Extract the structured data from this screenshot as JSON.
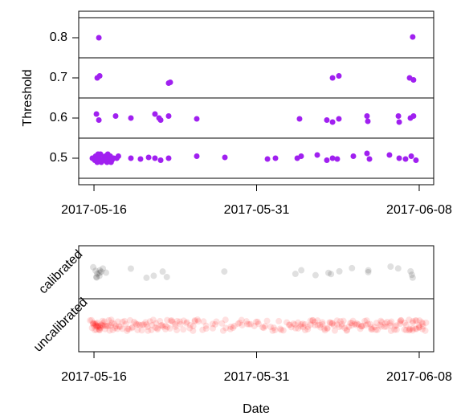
{
  "chart_data": [
    {
      "type": "scatter",
      "ylabel": "Threshold",
      "xlim": [
        -0.94,
        20.89
      ],
      "ylim": [
        0.434,
        0.866
      ],
      "xticks": [
        {
          "value": 0,
          "label": "2017-05-16"
        },
        {
          "value": 10,
          "label": "2017-05-31"
        },
        {
          "value": 20,
          "label": "2017-06-08"
        }
      ],
      "yticks": [
        0.5,
        0.6,
        0.7,
        0.8
      ],
      "hlines": [
        0.45,
        0.55,
        0.65,
        0.75,
        0.85
      ],
      "series": [
        {
          "color": "#a020f0",
          "x": [
            0.3,
            19.6,
            0.2,
            0.35,
            4.59,
            4.69,
            14.67,
            15.06,
            19.41,
            19.65,
            0.15,
            0.3,
            1.33,
            2.27,
            3.75,
            4.0,
            4.1,
            4.59,
            6.32,
            12.64,
            14.32,
            14.67,
            15.06,
            16.79,
            16.84,
            18.72,
            18.77,
            19.46,
            19.65,
            -0.1,
            0.05,
            0.1,
            0.2,
            0.3,
            0.4,
            0.5,
            0.6,
            0.7,
            0.8,
            0.9,
            1.0,
            1.1,
            1.2,
            1.4,
            1.5,
            0.25,
            0.45,
            0.65,
            0.85,
            1.05,
            2.27,
            2.86,
            3.36,
            3.75,
            4.1,
            4.59,
            6.32,
            8.05,
            10.67,
            11.16,
            12.5,
            12.74,
            13.73,
            14.32,
            14.67,
            14.96,
            15.95,
            16.79,
            16.94,
            18.17,
            18.77,
            19.16,
            19.51,
            19.8
          ],
          "y": [
            0.8,
            0.802,
            0.7,
            0.705,
            0.687,
            0.689,
            0.7,
            0.705,
            0.7,
            0.695,
            0.61,
            0.595,
            0.605,
            0.6,
            0.61,
            0.6,
            0.595,
            0.605,
            0.598,
            0.598,
            0.595,
            0.59,
            0.598,
            0.605,
            0.592,
            0.605,
            0.59,
            0.6,
            0.605,
            0.5,
            0.495,
            0.505,
            0.49,
            0.5,
            0.51,
            0.495,
            0.5,
            0.505,
            0.49,
            0.5,
            0.505,
            0.495,
            0.5,
            0.5,
            0.505,
            0.51,
            0.49,
            0.495,
            0.51,
            0.49,
            0.5,
            0.498,
            0.502,
            0.5,
            0.495,
            0.5,
            0.505,
            0.502,
            0.498,
            0.5,
            0.5,
            0.505,
            0.508,
            0.495,
            0.5,
            0.498,
            0.505,
            0.512,
            0.498,
            0.508,
            0.5,
            0.498,
            0.505,
            0.495
          ]
        }
      ]
    },
    {
      "type": "strip",
      "xlabel": "Date",
      "xlim": [
        -0.94,
        20.89
      ],
      "xticks": [
        {
          "value": 0,
          "label": "2017-05-16"
        },
        {
          "value": 10,
          "label": "2017-05-31"
        },
        {
          "value": 20,
          "label": "2017-06-08"
        }
      ],
      "categories": [
        "calibrated",
        "uncalibrated"
      ],
      "groups": [
        {
          "color": "#000000",
          "opacity": 0.12,
          "x": [
            0.0,
            0.1,
            0.2,
            0.25,
            0.3,
            0.35,
            0.4,
            0.5,
            0.6,
            0.3,
            0.2,
            2.4,
            3.1,
            3.8,
            4.1,
            4.6,
            7.9,
            12.5,
            12.64,
            13.73,
            14.32,
            14.67,
            15.0,
            15.95,
            16.79,
            16.94,
            18.17,
            18.77,
            19.41,
            19.65,
            19.5
          ]
        },
        {
          "color": "#ff0000",
          "opacity": 0.12,
          "x": [
            -0.1,
            0.0,
            0.1,
            0.2,
            0.3,
            0.4,
            0.5,
            0.7,
            0.9,
            1.1,
            1.3,
            1.6,
            1.9,
            2.2,
            2.5,
            2.8,
            3.1,
            3.4,
            3.7,
            4.0,
            4.3,
            4.6,
            4.9,
            5.2,
            5.6,
            6.0,
            6.3,
            6.8,
            7.4,
            8.0,
            8.5,
            9.0,
            9.5,
            10.0,
            10.5,
            11.0,
            11.5,
            12.0,
            12.4,
            12.7,
            13.0,
            13.3,
            13.6,
            13.9,
            14.2,
            14.5,
            14.8,
            15.1,
            15.4,
            15.7,
            16.0,
            16.3,
            16.6,
            16.9,
            17.2,
            17.5,
            17.8,
            18.1,
            18.4,
            18.7,
            19.0,
            19.3,
            19.5,
            19.7,
            19.9,
            20.1,
            20.3
          ]
        }
      ]
    }
  ]
}
